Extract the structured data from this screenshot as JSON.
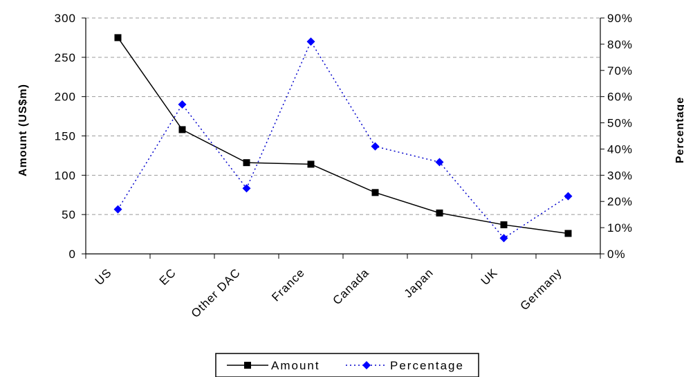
{
  "chart_data": {
    "type": "line",
    "categories": [
      "US",
      "EC",
      "Other DAC",
      "France",
      "Canada",
      "Japan",
      "UK",
      "Germany"
    ],
    "series": [
      {
        "name": "Amount",
        "axis": "left",
        "values": [
          275,
          158,
          116,
          114,
          78,
          52,
          37,
          26
        ],
        "color": "#000000",
        "line_style": "solid",
        "marker": "square"
      },
      {
        "name": "Percentage",
        "axis": "right",
        "values": [
          17,
          57,
          25,
          81,
          41,
          35,
          6,
          22
        ],
        "color": "#0000cc",
        "line_style": "dotted",
        "marker": "diamond"
      }
    ],
    "ylabel_left": "Amount (US$m)",
    "ylabel_right": "Percentage",
    "ylim_left": [
      0,
      300
    ],
    "yticks_left": [
      "0",
      "50",
      "100",
      "150",
      "200",
      "250",
      "300"
    ],
    "ylim_right": [
      0,
      90
    ],
    "yticks_right": [
      "0%",
      "10%",
      "20%",
      "30%",
      "40%",
      "50%",
      "60%",
      "70%",
      "80%",
      "90%"
    ],
    "grid": "horizontal dashed",
    "legend_position": "bottom"
  }
}
